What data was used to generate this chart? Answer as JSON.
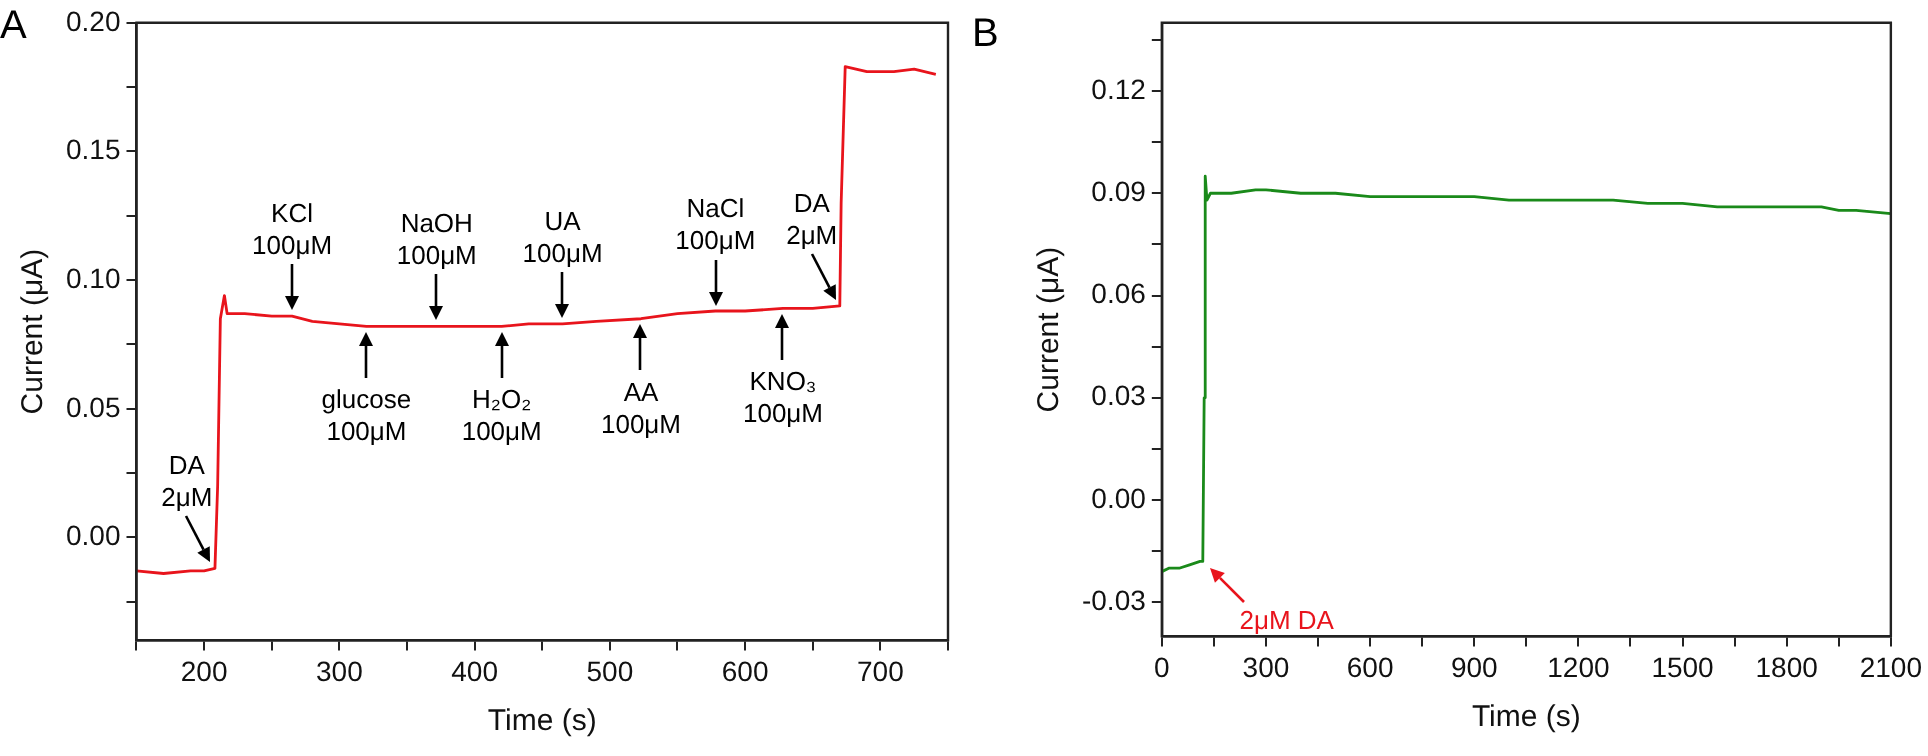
{
  "chart_data": [
    {
      "type": "line",
      "title": "A",
      "xlabel": "Time (s)",
      "ylabel": "Current (μA)",
      "legend": false,
      "grid": false,
      "marker": "none",
      "line_style": "solid",
      "xlim": [
        150,
        750
      ],
      "xticks": [
        {
          "value": 150,
          "label": null
        },
        200,
        {
          "value": 250,
          "label": null
        },
        300,
        {
          "value": 350,
          "label": null
        },
        400,
        {
          "value": 450,
          "label": null
        },
        500,
        {
          "value": 550,
          "label": null
        },
        600,
        {
          "value": 650,
          "label": null
        },
        700,
        {
          "value": 750,
          "label": null
        }
      ],
      "ylim": [
        -0.04,
        0.2
      ],
      "yticks": [
        {
          "value": -0.025,
          "label": null
        },
        {
          "value": 0,
          "label": "0.00"
        },
        {
          "value": 0.025,
          "label": null
        },
        {
          "value": 0.05,
          "label": "0.05"
        },
        {
          "value": 0.075,
          "label": null
        },
        {
          "value": 0.1,
          "label": "0.10"
        },
        {
          "value": 0.125,
          "label": null
        },
        {
          "value": 0.15,
          "label": "0.15"
        },
        {
          "value": 0.175,
          "label": null
        },
        {
          "value": 0.2,
          "label": "0.20"
        }
      ],
      "series": [
        {
          "color": "#e8141c",
          "x": [
            150,
            170,
            190,
            200,
            208,
            210,
            212,
            215,
            217,
            230,
            250,
            265,
            280,
            300,
            320,
            350,
            372,
            400,
            420,
            440,
            465,
            490,
            523,
            550,
            578,
            600,
            628,
            650,
            670,
            671,
            674,
            690,
            710,
            725,
            741
          ],
          "values": [
            -0.013,
            -0.014,
            -0.013,
            -0.013,
            -0.012,
            0.02,
            0.085,
            0.094,
            0.087,
            0.087,
            0.086,
            0.086,
            0.084,
            0.083,
            0.082,
            0.082,
            0.082,
            0.082,
            0.082,
            0.083,
            0.083,
            0.084,
            0.085,
            0.087,
            0.088,
            0.088,
            0.089,
            0.089,
            0.09,
            0.13,
            0.183,
            0.181,
            0.181,
            0.182,
            0.18
          ]
        }
      ],
      "annotations": [
        {
          "text": "DA\n2μM",
          "x": 205,
          "y": -0.012
        },
        {
          "text": "KCl\n100μM",
          "x": 265,
          "y": 0.086
        },
        {
          "text": "glucose\n100μM",
          "x": 320,
          "y": 0.082
        },
        {
          "text": "NaOH\n100μM",
          "x": 372,
          "y": 0.082
        },
        {
          "text": "H₂O₂\n100μM",
          "x": 420,
          "y": 0.082
        },
        {
          "text": "UA\n100μM",
          "x": 465,
          "y": 0.083
        },
        {
          "text": "AA\n100μM",
          "x": 523,
          "y": 0.085
        },
        {
          "text": "NaCl\n100μM",
          "x": 578,
          "y": 0.088
        },
        {
          "text": "KNO₃\n100μM",
          "x": 628,
          "y": 0.089
        },
        {
          "text": "DA\n2μM",
          "x": 667,
          "y": 0.09
        }
      ]
    },
    {
      "type": "line",
      "title": "B",
      "xlabel": "Time (s)",
      "ylabel": "Current (μA)",
      "legend": false,
      "grid": false,
      "marker": "none",
      "line_style": "solid",
      "xlim": [
        0,
        2100
      ],
      "xticks": [
        0,
        {
          "value": 150,
          "label": null
        },
        300,
        {
          "value": 450,
          "label": null
        },
        600,
        {
          "value": 750,
          "label": null
        },
        900,
        {
          "value": 1050,
          "label": null
        },
        1200,
        {
          "value": 1350,
          "label": null
        },
        1500,
        {
          "value": 1650,
          "label": null
        },
        1800,
        {
          "value": 1950,
          "label": null
        },
        2100
      ],
      "ylim": [
        -0.04,
        0.14
      ],
      "yticks": [
        -0.03,
        {
          "value": -0.015,
          "label": null
        },
        {
          "value": 0,
          "label": "0.00"
        },
        {
          "value": 0.015,
          "label": null
        },
        0.03,
        {
          "value": 0.045,
          "label": null
        },
        0.06,
        {
          "value": 0.075,
          "label": null
        },
        0.09,
        {
          "value": 0.105,
          "label": null
        },
        0.12,
        {
          "value": 0.135,
          "label": null
        }
      ],
      "series": [
        {
          "color": "#1a8a1a",
          "x": [
            0,
            20,
            50,
            80,
            110,
            118,
            122,
            125,
            130,
            140,
            160,
            200,
            270,
            300,
            400,
            500,
            600,
            700,
            800,
            900,
            1000,
            1100,
            1200,
            1300,
            1400,
            1500,
            1600,
            1700,
            1800,
            1900,
            1950,
            2000,
            2100
          ],
          "values": [
            -0.021,
            -0.02,
            -0.02,
            -0.019,
            -0.018,
            -0.018,
            0.03,
            0.095,
            0.088,
            0.09,
            0.09,
            0.09,
            0.091,
            0.091,
            0.09,
            0.09,
            0.089,
            0.089,
            0.089,
            0.089,
            0.088,
            0.088,
            0.088,
            0.088,
            0.087,
            0.087,
            0.086,
            0.086,
            0.086,
            0.086,
            0.085,
            0.085,
            0.084
          ]
        }
      ],
      "annotations": [
        {
          "text": "2μM DA",
          "x": 120,
          "y": -0.018
        }
      ]
    }
  ]
}
